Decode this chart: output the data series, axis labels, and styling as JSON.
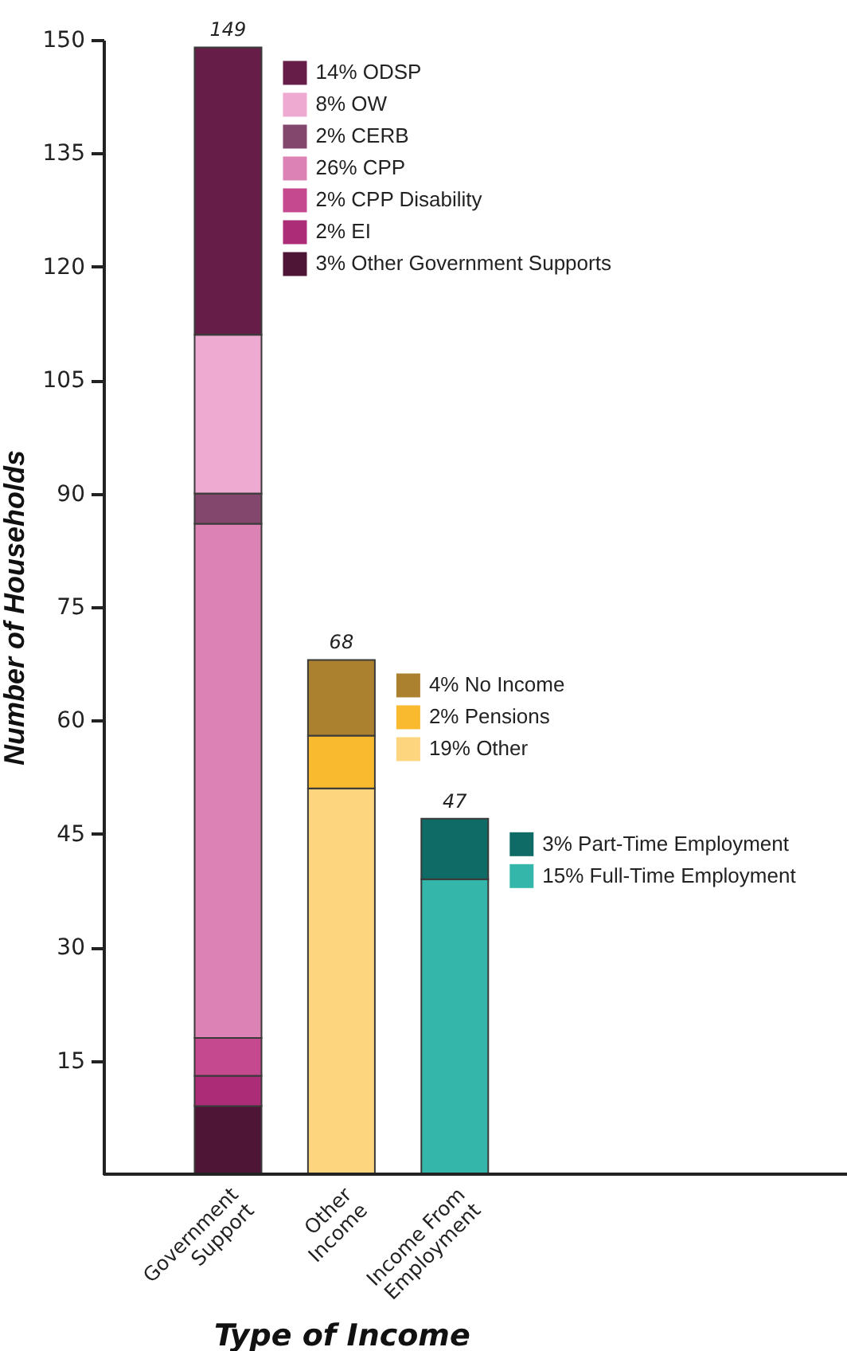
{
  "chart_data": {
    "type": "bar",
    "stacked": true,
    "xlabel": "Type of Income",
    "ylabel": "Number of Households",
    "categories": [
      "Government Support",
      "Other Income",
      "Income From Employment"
    ],
    "series": [
      {
        "name": "3% Other Government Supports",
        "color": "#4e1537",
        "values": [
          9,
          null,
          null
        ]
      },
      {
        "name": "2% EI",
        "color": "#ad2c78",
        "values": [
          4,
          null,
          null
        ]
      },
      {
        "name": "2% CPP Disability",
        "color": "#c5498f",
        "values": [
          5,
          null,
          null
        ]
      },
      {
        "name": "26% CPP",
        "color": "#dd82b5",
        "values": [
          68,
          null,
          null
        ]
      },
      {
        "name": "2% CERB",
        "color": "#83466d",
        "values": [
          4,
          null,
          null
        ]
      },
      {
        "name": "8% OW",
        "color": "#eeaad0",
        "values": [
          21,
          null,
          null
        ]
      },
      {
        "name": "14% ODSP",
        "color": "#661e48",
        "values": [
          38,
          null,
          null
        ]
      },
      {
        "name": "19% Other",
        "color": "#fcd57e",
        "values": [
          null,
          51,
          null
        ]
      },
      {
        "name": "2% Pensions",
        "color": "#f9ba30",
        "values": [
          null,
          7,
          null
        ]
      },
      {
        "name": "4% No Income",
        "color": "#ab802e",
        "values": [
          null,
          10,
          null
        ]
      },
      {
        "name": "15% Full-Time Employment",
        "color": "#34b7aa",
        "values": [
          null,
          null,
          39
        ]
      },
      {
        "name": "3% Part-Time Employment",
        "color": "#0e6b65",
        "values": [
          null,
          null,
          8
        ]
      }
    ],
    "totals": [
      "149",
      "68",
      "47"
    ],
    "ylim": [
      0,
      150
    ],
    "yticks": [
      15,
      30,
      45,
      60,
      75,
      90,
      105,
      120,
      135,
      150
    ],
    "legend": "right"
  }
}
